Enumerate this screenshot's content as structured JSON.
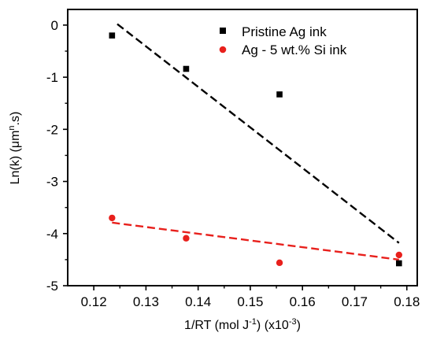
{
  "chart_data": {
    "type": "scatter",
    "xlabel": {
      "main": "1/RT (mol J",
      "sup1": "-1",
      "mid": ") (x10",
      "sup2": "-3",
      "end": ")"
    },
    "ylabel": {
      "main": "Ln(k) (μm",
      "sup": "n",
      "end": ".s)"
    },
    "xlim": [
      0.115,
      0.182
    ],
    "ylim": [
      -5,
      0.3
    ],
    "xticks": [
      0.12,
      0.13,
      0.14,
      0.15,
      0.16,
      0.17,
      0.18
    ],
    "xtick_labels": [
      "0.12",
      "0.13",
      "0.14",
      "0.15",
      "0.16",
      "0.17",
      "0.18"
    ],
    "yticks": [
      0,
      -1,
      -2,
      -3,
      -4,
      -5
    ],
    "ytick_labels": [
      "0",
      "-1",
      "-2",
      "-3",
      "-4",
      "-5"
    ],
    "legend_position": "top-right",
    "series": [
      {
        "name": "Pristine Ag ink",
        "marker": "square",
        "color": "#000000",
        "x": [
          0.1235,
          0.1377,
          0.1556,
          0.1785
        ],
        "y": [
          -0.2,
          -0.84,
          -1.33,
          -4.57
        ],
        "fit": {
          "x": [
            0.1245,
            0.1785
          ],
          "y": [
            0.02,
            -4.18
          ]
        }
      },
      {
        "name": "Ag - 5 wt.% Si ink",
        "marker": "circle",
        "color": "#e8201c",
        "x": [
          0.1235,
          0.1377,
          0.1556,
          0.1785
        ],
        "y": [
          -3.7,
          -4.09,
          -4.56,
          -4.41
        ],
        "fit": {
          "x": [
            0.1235,
            0.1785
          ],
          "y": [
            -3.79,
            -4.5
          ]
        }
      }
    ]
  }
}
